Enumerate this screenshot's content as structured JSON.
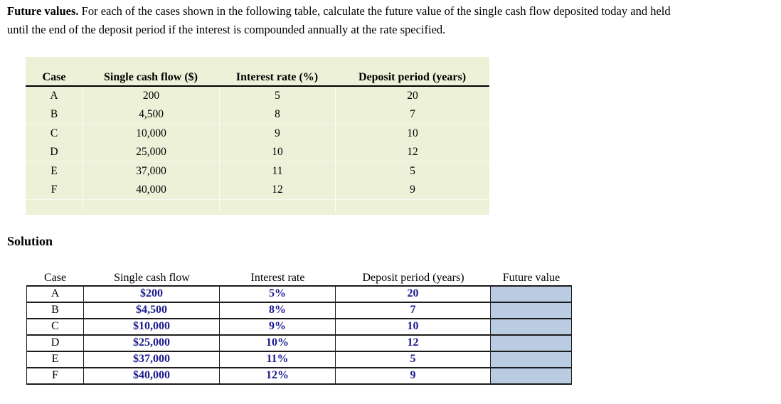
{
  "intro": {
    "lead": "Future values.",
    "line1": " For each of the cases shown in the following table, calculate the future value of the single cash flow deposited today and held",
    "line2": "until the end of the deposit period if the interest is compounded annually at the rate specified."
  },
  "problem_table": {
    "headers": [
      "Case",
      "Single cash flow ($)",
      "Interest rate (%)",
      "Deposit period (years)"
    ],
    "rows": [
      {
        "case": "A",
        "cash_flow": "200",
        "rate": "5",
        "years": "20"
      },
      {
        "case": "B",
        "cash_flow": "4,500",
        "rate": "8",
        "years": "7"
      },
      {
        "case": "C",
        "cash_flow": "10,000",
        "rate": "9",
        "years": "10"
      },
      {
        "case": "D",
        "cash_flow": "25,000",
        "rate": "10",
        "years": "12"
      },
      {
        "case": "E",
        "cash_flow": "37,000",
        "rate": "11",
        "years": "5"
      },
      {
        "case": "F",
        "cash_flow": "40,000",
        "rate": "12",
        "years": "9"
      }
    ]
  },
  "solution": {
    "heading": "Solution"
  },
  "solution_table": {
    "headers": [
      "Case",
      "Single cash flow",
      "Interest rate",
      "Deposit period (years)",
      "Future value"
    ],
    "rows": [
      {
        "case": "A",
        "cash_flow": "$200",
        "rate": "5%",
        "years": "20",
        "future_value": ""
      },
      {
        "case": "B",
        "cash_flow": "$4,500",
        "rate": "8%",
        "years": "7",
        "future_value": ""
      },
      {
        "case": "C",
        "cash_flow": "$10,000",
        "rate": "9%",
        "years": "10",
        "future_value": ""
      },
      {
        "case": "D",
        "cash_flow": "$25,000",
        "rate": "10%",
        "years": "12",
        "future_value": ""
      },
      {
        "case": "E",
        "cash_flow": "$37,000",
        "rate": "11%",
        "years": "5",
        "future_value": ""
      },
      {
        "case": "F",
        "cash_flow": "$40,000",
        "rate": "12%",
        "years": "9",
        "future_value": ""
      }
    ]
  },
  "colors": {
    "problem_table_bg": "#edf1d8",
    "future_value_fill": "#b9cce2",
    "value_text": "#1b1b8f"
  }
}
